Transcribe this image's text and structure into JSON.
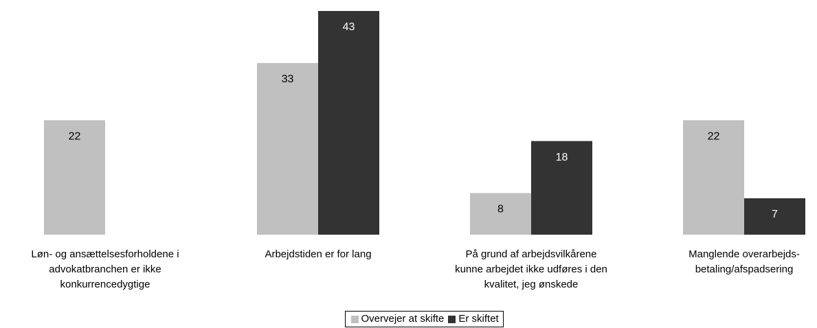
{
  "chart_data": {
    "type": "bar",
    "categories": [
      "Løn- og ansættelsesforholdene i\nadvokatbranchen er ikke\nkonkurrencedygtige",
      "Arbejdstiden er for lang",
      "På grund af arbejdsvilkårene\nkunne arbejdet ikke udføres i den\nkvalitet, jeg ønskede",
      "Manglende overarbejds-\nbetaling/afspadsering"
    ],
    "series": [
      {
        "name": "Overvejer at skifte",
        "color": "#c0c0c0",
        "values": [
          22,
          33,
          8,
          22
        ]
      },
      {
        "name": "Er skiftet",
        "color": "#333333",
        "values": [
          null,
          43,
          18,
          7
        ]
      }
    ],
    "legend": "bottom"
  }
}
